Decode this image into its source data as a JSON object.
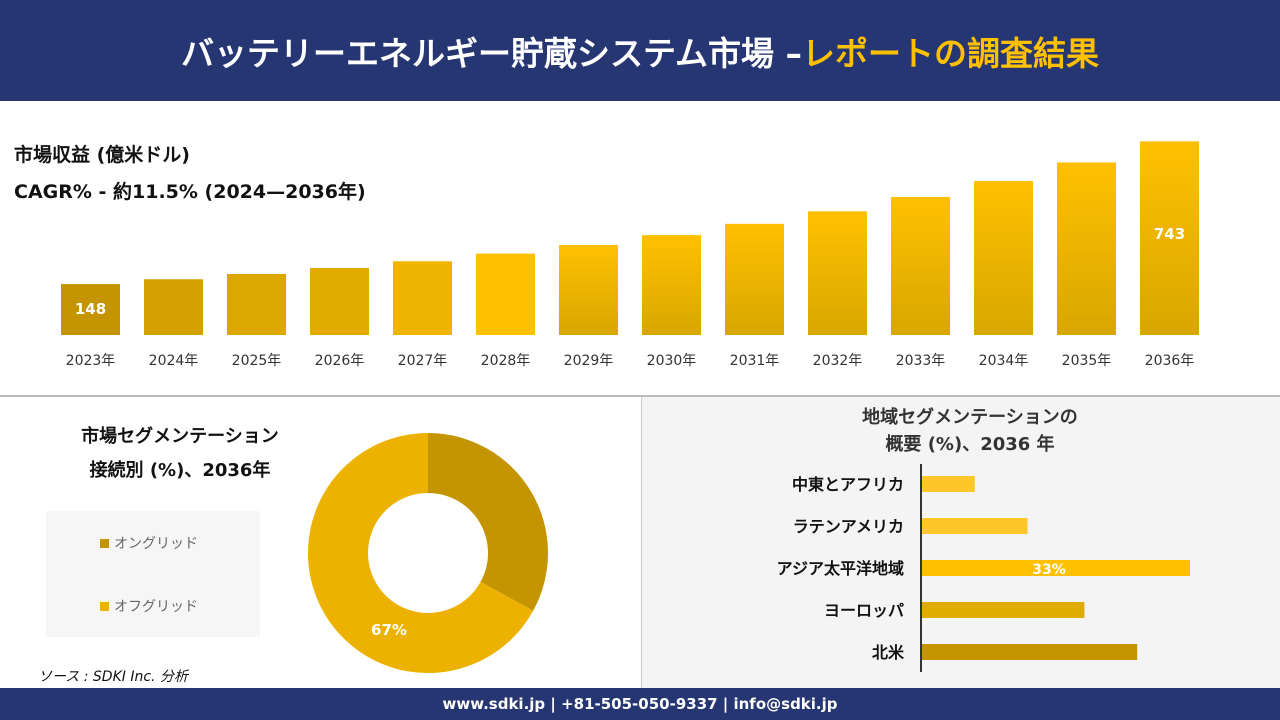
{
  "header": {
    "title_main": "バッテリーエネルギー貯蔵システム市場 –",
    "title_accent": "レポートの調査結果"
  },
  "colors": {
    "navy": "#263672",
    "accent": "#FFC000",
    "ongrid": "#C49500",
    "offgrid": "#EDB100"
  },
  "chart_data": [
    {
      "type": "bar",
      "title": "市場収益 (億米ドル)",
      "subtitle": "CAGR% - 約11.5% (2024—2036年)",
      "categories": [
        "2023年",
        "2024年",
        "2025年",
        "2026年",
        "2027年",
        "2028年",
        "2029年",
        "2030年",
        "2031年",
        "2032年",
        "2033年",
        "2034年",
        "2035年",
        "2036年"
      ],
      "values": [
        148,
        168,
        190,
        215,
        243,
        275,
        311,
        352,
        399,
        451,
        511,
        578,
        655,
        743
      ],
      "data_labels": {
        "0": "148",
        "13": "743"
      }
    },
    {
      "type": "pie",
      "title": "市場セグメンテーション 接続別 (%)、2036年",
      "title_lines": [
        "市場セグメンテーション",
        "接続別 (%)、2036年"
      ],
      "categories": [
        "オングリッド",
        "オフグリッド"
      ],
      "values": [
        33,
        67
      ],
      "data_labels": {
        "1": "67%"
      },
      "legend": "left"
    },
    {
      "type": "bar",
      "orientation": "horizontal",
      "title": "地域セグメンテーションの 概要 (%)、2036 年",
      "title_lines": [
        "地域セグメンテーションの",
        "概要 (%)、2036 年"
      ],
      "categories": [
        "中東とアフリカ",
        "ラテンアメリカ",
        "アジア太平洋地域",
        "ヨーロッパ",
        "北米"
      ],
      "values": [
        6.5,
        13,
        33,
        20,
        26.5
      ],
      "data_labels": {
        "2": "33%"
      },
      "bar_colors": [
        "#FFC62A",
        "#FFC62A",
        "#FFC000",
        "#E0AC00",
        "#C49500"
      ]
    }
  ],
  "source": "ソース : SDKI Inc. 分析",
  "footer": "www.sdki.jp | +81-505-050-9337 | info@sdki.jp"
}
